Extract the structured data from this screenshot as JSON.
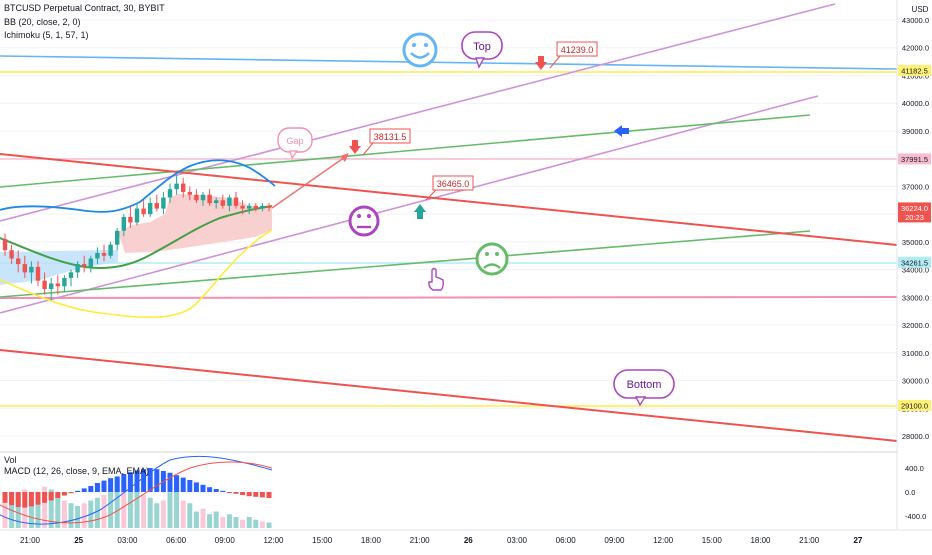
{
  "header": {
    "symbol_line": "BTCUSD Perpetual Contract, 30, BYBIT",
    "indicator_bb": "BB (20, close, 2, 0)",
    "indicator_ichimoku": "Ichimoku (5, 1, 57, 1)"
  },
  "macd_pane": {
    "vol_label": "Vol",
    "macd_label": "MACD (12, 26, close, 9, EMA, EMA)",
    "scale_ticks": [
      "400.0",
      "0.0",
      "-400.0"
    ]
  },
  "colors": {
    "red_line": "#ef5350",
    "green_line": "#66bb6a",
    "violet_line": "#ce93d8",
    "blue_line": "#64b5f6",
    "yellow_line": "#fff176",
    "pink_line": "#f48fb1",
    "cyan_line": "#b2ebf2",
    "bb_basis": "#1e88e5",
    "ichimoku_cloud": "#f8c8c8",
    "macd_up": "#2962ff",
    "macd_down": "#ef5350"
  },
  "chart_data": {
    "type": "candlestick",
    "price_axis": {
      "unit_label": "USD",
      "ticks": [
        "43000.0",
        "42000.0",
        "41000.0",
        "40000.0",
        "39000.0",
        "38000.0",
        "37000.0",
        "36000.0",
        "35000.0",
        "34000.0",
        "33000.0",
        "32000.0",
        "31000.0",
        "30000.0",
        "29000.0",
        "28000.0"
      ],
      "ylim": [
        27500,
        43500
      ]
    },
    "time_axis": {
      "ticks": [
        "21:00",
        "25",
        "03:00",
        "06:00",
        "09:00",
        "12:00",
        "15:00",
        "18:00",
        "21:00",
        "26",
        "03:00",
        "06:00",
        "09:00",
        "12:00",
        "15:00",
        "18:00",
        "21:00",
        "27"
      ]
    },
    "price_labels": [
      {
        "text": "41182.5",
        "value": 41182.5,
        "color": "#fff176"
      },
      {
        "text": "37991.5",
        "value": 37991.5,
        "color": "#f8bbd0"
      },
      {
        "text": "36224.0",
        "value": 36224.0,
        "color": "#ef5350",
        "sub": "20:23"
      },
      {
        "text": "34261.5",
        "value": 34261.5,
        "color": "#b2ebf2"
      },
      {
        "text": "29100.0",
        "value": 29100.0,
        "color": "#fff176"
      }
    ],
    "annotations": [
      {
        "text": "41239.0",
        "kind": "price-callout"
      },
      {
        "text": "38131.5",
        "kind": "price-callout"
      },
      {
        "text": "36465.0",
        "kind": "price-callout"
      },
      {
        "text": "Top",
        "kind": "bubble"
      },
      {
        "text": "Gap",
        "kind": "bubble"
      },
      {
        "text": "Bottom",
        "kind": "bubble"
      }
    ],
    "candles": [
      {
        "o": 35100,
        "h": 35300,
        "l": 34500,
        "c": 34700
      },
      {
        "o": 34700,
        "h": 34900,
        "l": 34200,
        "c": 34400
      },
      {
        "o": 34400,
        "h": 34700,
        "l": 33900,
        "c": 34200
      },
      {
        "o": 34200,
        "h": 34500,
        "l": 33700,
        "c": 33900
      },
      {
        "o": 33900,
        "h": 34300,
        "l": 33500,
        "c": 34100
      },
      {
        "o": 34100,
        "h": 34300,
        "l": 33400,
        "c": 33600
      },
      {
        "o": 33600,
        "h": 33900,
        "l": 33100,
        "c": 33300
      },
      {
        "o": 33300,
        "h": 33700,
        "l": 32900,
        "c": 33500
      },
      {
        "o": 33500,
        "h": 33800,
        "l": 33100,
        "c": 33400
      },
      {
        "o": 33400,
        "h": 33800,
        "l": 33200,
        "c": 33700
      },
      {
        "o": 33700,
        "h": 34000,
        "l": 33400,
        "c": 33900
      },
      {
        "o": 33900,
        "h": 34300,
        "l": 33700,
        "c": 34200
      },
      {
        "o": 34200,
        "h": 34500,
        "l": 33900,
        "c": 34100
      },
      {
        "o": 34100,
        "h": 34500,
        "l": 33900,
        "c": 34400
      },
      {
        "o": 34400,
        "h": 34800,
        "l": 34200,
        "c": 34600
      },
      {
        "o": 34600,
        "h": 34900,
        "l": 34300,
        "c": 34500
      },
      {
        "o": 34500,
        "h": 35000,
        "l": 34400,
        "c": 34900
      },
      {
        "o": 34900,
        "h": 35500,
        "l": 34700,
        "c": 35400
      },
      {
        "o": 35400,
        "h": 36000,
        "l": 35200,
        "c": 35900
      },
      {
        "o": 35900,
        "h": 36300,
        "l": 35500,
        "c": 35700
      },
      {
        "o": 35700,
        "h": 36400,
        "l": 35600,
        "c": 36200
      },
      {
        "o": 36200,
        "h": 36500,
        "l": 35900,
        "c": 36000
      },
      {
        "o": 36000,
        "h": 36600,
        "l": 35900,
        "c": 36400
      },
      {
        "o": 36400,
        "h": 36700,
        "l": 36100,
        "c": 36200
      },
      {
        "o": 36200,
        "h": 36800,
        "l": 36000,
        "c": 36600
      },
      {
        "o": 36600,
        "h": 37100,
        "l": 36400,
        "c": 36900
      },
      {
        "o": 36900,
        "h": 37400,
        "l": 36700,
        "c": 37100
      },
      {
        "o": 37100,
        "h": 37300,
        "l": 36600,
        "c": 36800
      },
      {
        "o": 36800,
        "h": 37000,
        "l": 36500,
        "c": 36700
      },
      {
        "o": 36700,
        "h": 36900,
        "l": 36400,
        "c": 36500
      },
      {
        "o": 36500,
        "h": 36800,
        "l": 36300,
        "c": 36700
      },
      {
        "o": 36700,
        "h": 36900,
        "l": 36300,
        "c": 36400
      },
      {
        "o": 36400,
        "h": 36600,
        "l": 36200,
        "c": 36500
      },
      {
        "o": 36500,
        "h": 36700,
        "l": 36200,
        "c": 36300
      },
      {
        "o": 36300,
        "h": 36700,
        "l": 36100,
        "c": 36600
      },
      {
        "o": 36600,
        "h": 36800,
        "l": 36200,
        "c": 36300
      },
      {
        "o": 36300,
        "h": 36500,
        "l": 36000,
        "c": 36200
      },
      {
        "o": 36200,
        "h": 36400,
        "l": 36000,
        "c": 36300
      },
      {
        "o": 36300,
        "h": 36400,
        "l": 36100,
        "c": 36200
      },
      {
        "o": 36200,
        "h": 36400,
        "l": 36100,
        "c": 36300
      },
      {
        "o": 36300,
        "h": 36400,
        "l": 36100,
        "c": 36224
      }
    ],
    "macd_histogram": [
      -180,
      -220,
      -250,
      -260,
      -240,
      -210,
      -180,
      -140,
      -100,
      -60,
      -20,
      20,
      60,
      100,
      150,
      190,
      230,
      260,
      300,
      330,
      360,
      380,
      400,
      380,
      350,
      320,
      280,
      240,
      200,
      160,
      120,
      80,
      50,
      20,
      -10,
      -30,
      -50,
      -70,
      -80,
      -90,
      -100
    ],
    "volume": [
      0.55,
      0.6,
      0.65,
      0.7,
      0.5,
      0.6,
      0.75,
      0.7,
      0.6,
      0.5,
      0.45,
      0.4,
      0.45,
      0.5,
      0.55,
      0.6,
      0.65,
      0.9,
      0.85,
      0.8,
      0.7,
      0.6,
      0.55,
      0.45,
      0.5,
      0.65,
      0.95,
      0.5,
      0.45,
      0.3,
      0.35,
      0.25,
      0.3,
      0.2,
      0.25,
      0.2,
      0.15,
      0.2,
      0.15,
      0.12,
      0.1
    ]
  }
}
